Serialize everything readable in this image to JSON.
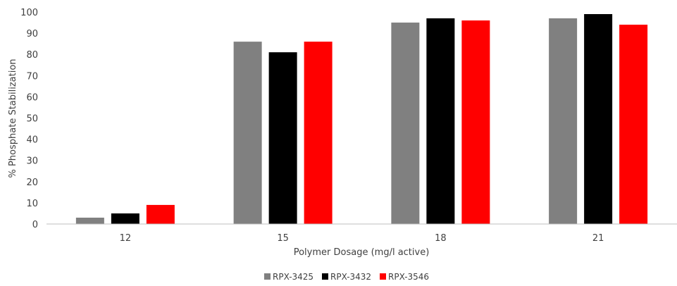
{
  "chart_data": {
    "type": "bar",
    "title": "",
    "xlabel": "Polymer Dosage (mg/l active)",
    "ylabel": "% Phosphate Stabilization",
    "categories": [
      "12",
      "15",
      "18",
      "21"
    ],
    "ylim": [
      0,
      100
    ],
    "yticks": [
      "0",
      "10",
      "20",
      "30",
      "40",
      "50",
      "60",
      "70",
      "80",
      "90",
      "100"
    ],
    "grid": false,
    "legend_position": "bottom",
    "series": [
      {
        "name": "RPX-3425",
        "color": "#808080",
        "values": [
          3,
          86,
          95,
          97
        ]
      },
      {
        "name": "RPX-3432",
        "color": "#000000",
        "values": [
          5,
          81,
          97,
          99
        ]
      },
      {
        "name": "RPX-3546",
        "color": "#ff0000",
        "values": [
          9,
          86,
          96,
          94
        ]
      }
    ]
  }
}
